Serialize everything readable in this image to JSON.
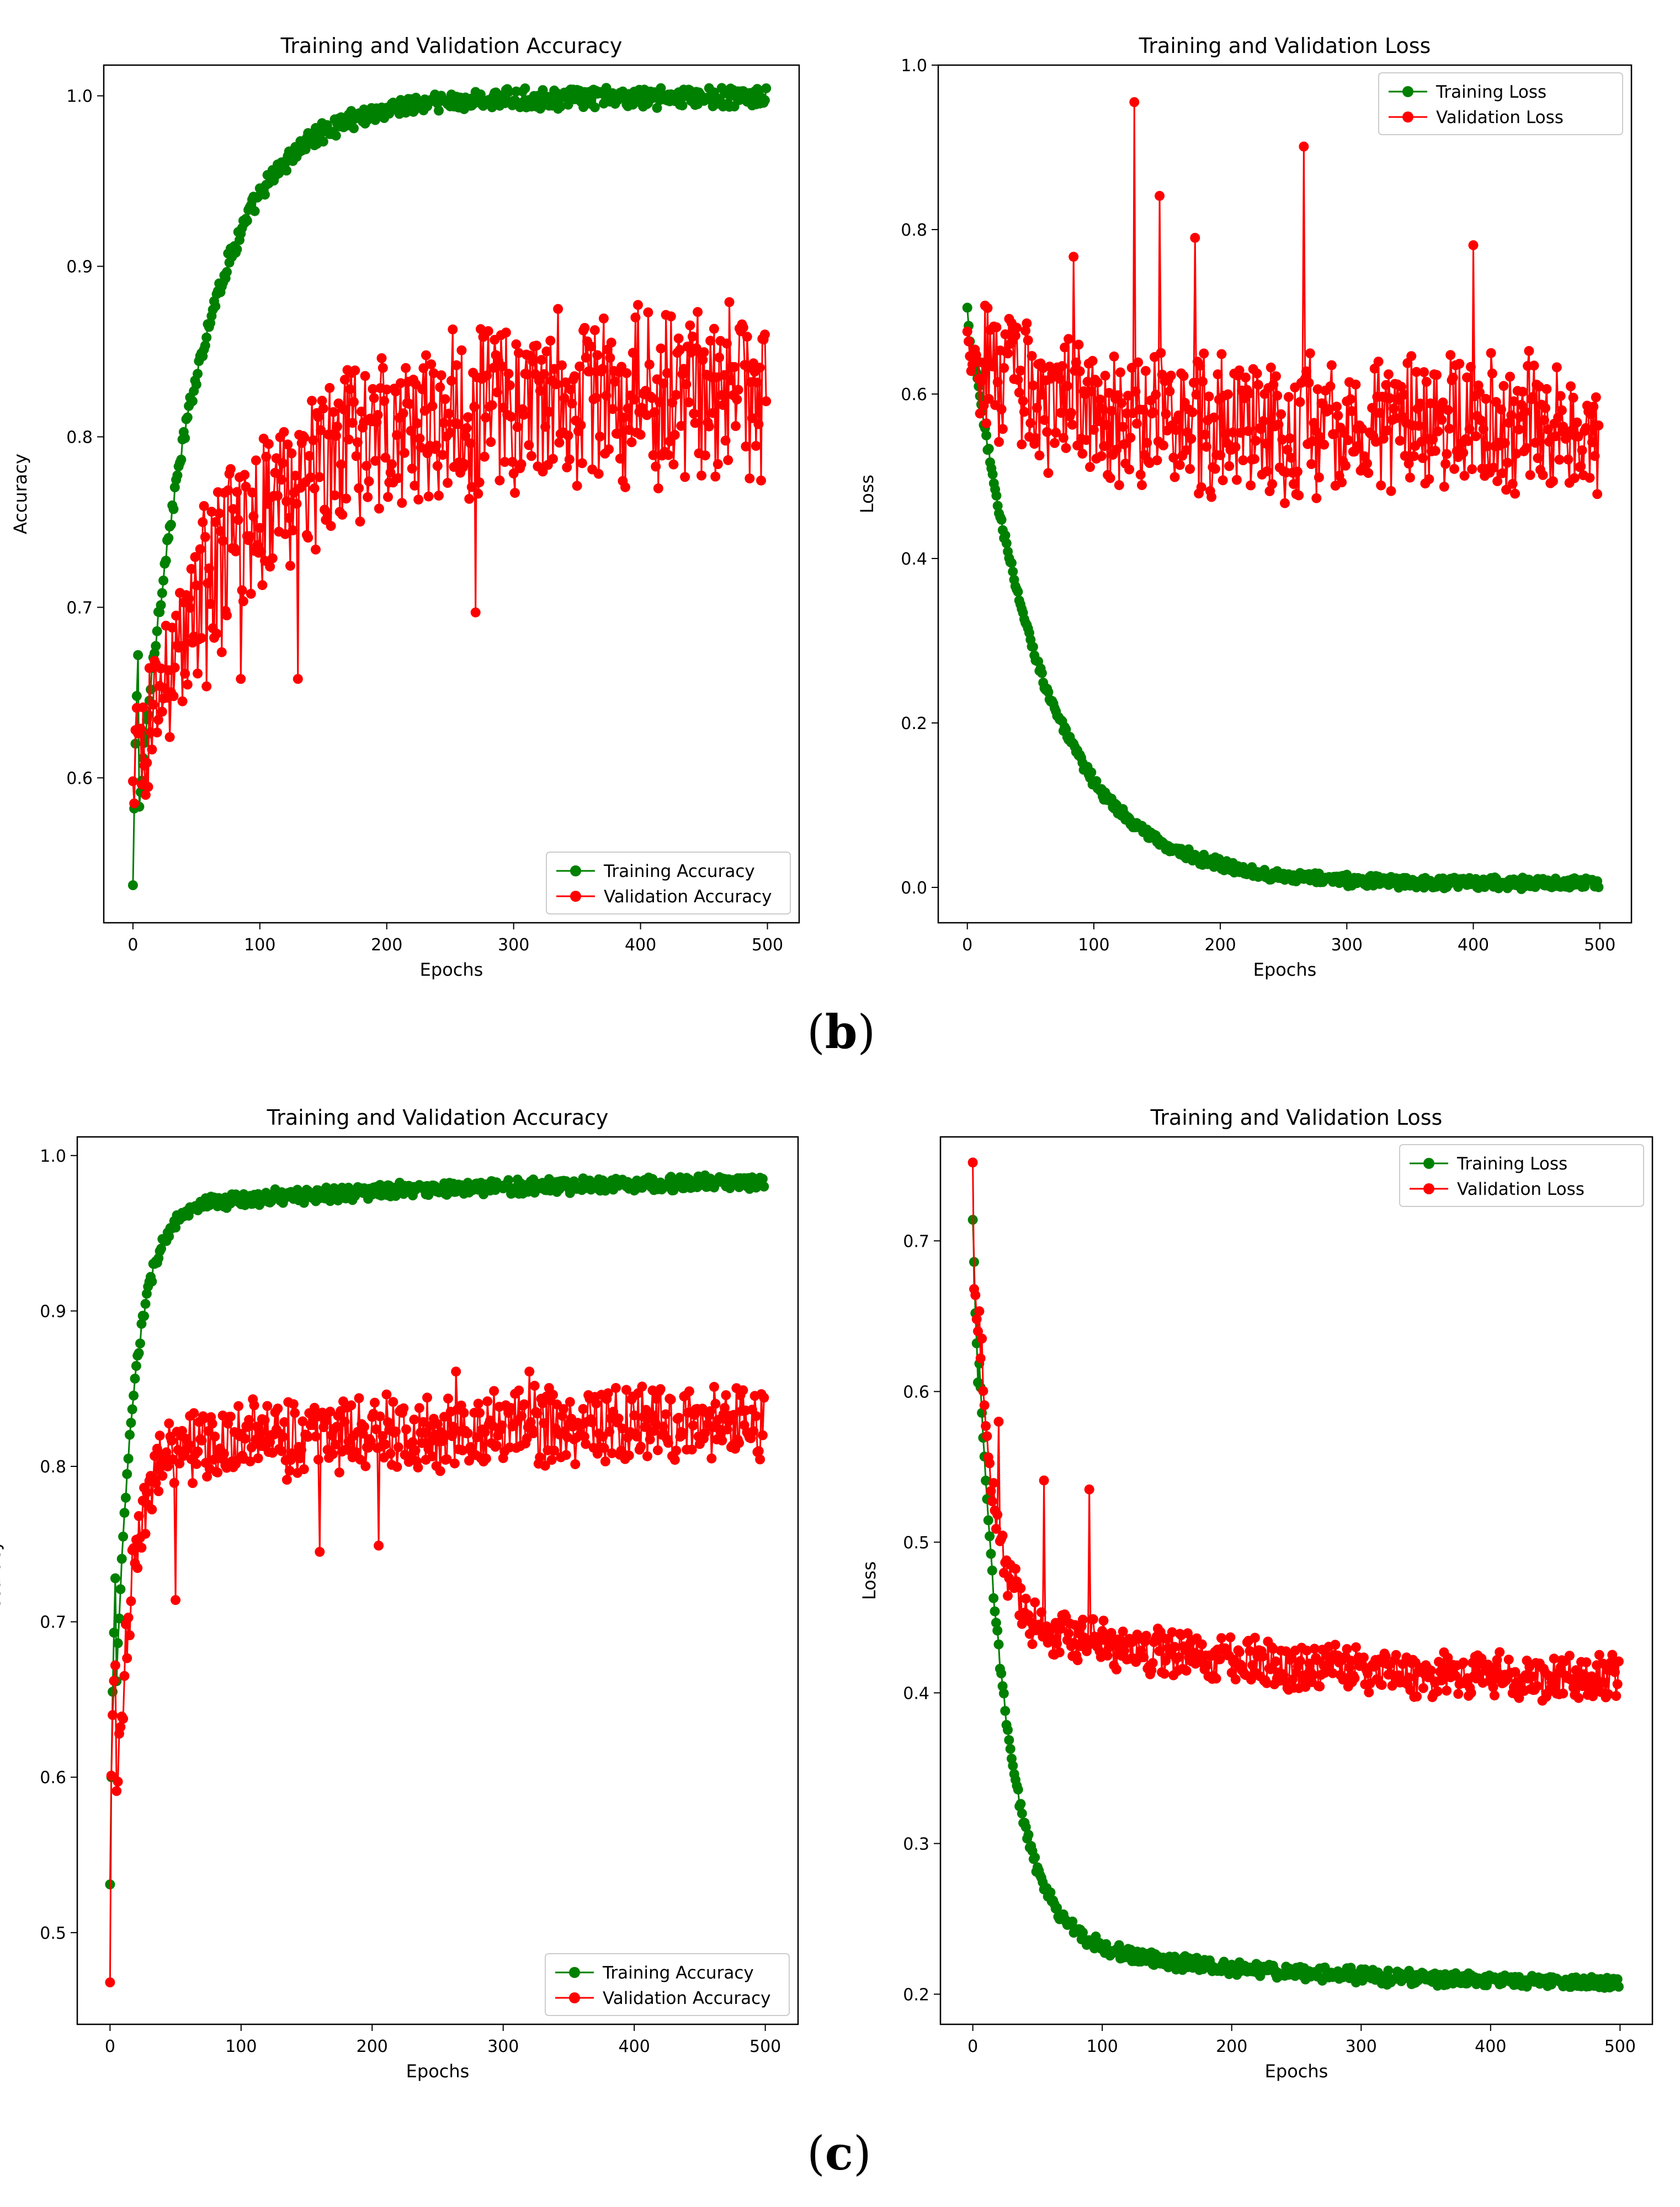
{
  "panel_labels": {
    "b": "b",
    "c": "c"
  },
  "colors": {
    "training": "#008000",
    "validation": "#ff0000"
  },
  "chart_data": [
    {
      "id": "b-acc",
      "type": "line",
      "title": "Training and Validation Accuracy",
      "xlabel": "Epochs",
      "ylabel": "Accuracy",
      "xlim": [
        -23,
        525
      ],
      "ylim": [
        0.515,
        1.018
      ],
      "xticks": [
        0,
        100,
        200,
        300,
        400,
        500
      ],
      "yticks": [
        0.6,
        0.7,
        0.8,
        0.9,
        1.0
      ],
      "legend_position": "lower-right",
      "series": [
        {
          "name": "Training Accuracy",
          "color": "#008000",
          "kind": "exp",
          "start": 0.537,
          "end": 0.999,
          "tau": 48,
          "noise": 0.005,
          "first": [
            0.537,
            0.582,
            0.62,
            0.648,
            0.672
          ]
        },
        {
          "name": "Validation Accuracy",
          "color": "#ff0000",
          "kind": "exp",
          "start": 0.598,
          "end": 0.825,
          "tau": 85,
          "noise": 0.045,
          "first": [
            0.598,
            0.585,
            0.628,
            0.641,
            0.626
          ],
          "outliers": [
            [
              270,
              0.697
            ],
            [
              130,
              0.658
            ],
            [
              85,
              0.658
            ],
            [
              470,
              0.879
            ],
            [
              335,
              0.875
            ]
          ]
        }
      ]
    },
    {
      "id": "b-loss",
      "type": "line",
      "title": "Training and Validation Loss",
      "xlabel": "Epochs",
      "ylabel": "Loss",
      "xlim": [
        -23,
        525
      ],
      "ylim": [
        -0.043,
        1.0
      ],
      "xticks": [
        0,
        100,
        200,
        300,
        400,
        500
      ],
      "yticks": [
        0.0,
        0.2,
        0.4,
        0.6,
        0.8,
        1.0
      ],
      "legend_position": "upper-right",
      "series": [
        {
          "name": "Training Loss",
          "color": "#008000",
          "kind": "exp",
          "start": 0.705,
          "end": 0.005,
          "tau": 58,
          "noise": 0.006,
          "first": [
            0.705,
            0.683,
            0.664,
            0.646,
            0.628
          ]
        },
        {
          "name": "Validation Loss",
          "color": "#ff0000",
          "kind": "exp",
          "start": 0.66,
          "end": 0.56,
          "tau": 60,
          "noise": 0.075,
          "first": [
            0.676,
            0.664,
            0.646,
            0.628,
            0.636
          ],
          "outliers": [
            [
              132,
              0.955
            ],
            [
              266,
              0.901
            ],
            [
              152,
              0.841
            ],
            [
              400,
              0.781
            ],
            [
              180,
              0.79
            ],
            [
              84,
              0.767
            ]
          ]
        }
      ]
    },
    {
      "id": "c-acc",
      "type": "line",
      "title": "Training and Validation Accuracy",
      "xlabel": "Epochs",
      "ylabel": "Accuracy",
      "xlim": [
        -25,
        525
      ],
      "ylim": [
        0.441,
        1.012
      ],
      "xticks": [
        0,
        100,
        200,
        300,
        400,
        500
      ],
      "yticks": [
        0.5,
        0.6,
        0.7,
        0.8,
        0.9,
        1.0
      ],
      "legend_position": "lower-right",
      "series": [
        {
          "name": "Training Accuracy",
          "color": "#008000",
          "kind": "exp2",
          "start": 0.531,
          "end": 0.985,
          "tau": 14,
          "tau2": 220,
          "w2": 0.045,
          "noise": 0.004,
          "first": [
            0.531,
            0.6,
            0.655,
            0.693,
            0.728
          ]
        },
        {
          "name": "Validation Accuracy",
          "color": "#ff0000",
          "kind": "exp2",
          "start": 0.468,
          "end": 0.83,
          "tau": 12,
          "tau2": 200,
          "w2": 0.06,
          "noise": 0.022,
          "first": [
            0.468,
            0.601,
            0.64,
            0.662,
            0.672
          ],
          "outliers": [
            [
              264,
              0.861
            ],
            [
              320,
              0.861
            ],
            [
              160,
              0.745
            ],
            [
              205,
              0.749
            ],
            [
              50,
              0.714
            ]
          ]
        }
      ]
    },
    {
      "id": "c-loss",
      "type": "line",
      "title": "Training and Validation Loss",
      "xlabel": "Epochs",
      "ylabel": "Loss",
      "xlim": [
        -25,
        525
      ],
      "ylim": [
        0.18,
        0.769
      ],
      "xticks": [
        0,
        100,
        200,
        300,
        400,
        500
      ],
      "yticks": [
        0.2,
        0.3,
        0.4,
        0.5,
        0.6,
        0.7
      ],
      "legend_position": "upper-right",
      "series": [
        {
          "name": "Training Loss",
          "color": "#008000",
          "kind": "exp2",
          "start": 0.714,
          "end": 0.205,
          "tau": 22,
          "tau2": 180,
          "w2": 0.075,
          "noise": 0.004,
          "first": [
            0.714,
            0.686,
            0.652,
            0.632,
            0.606
          ]
        },
        {
          "name": "Validation Loss",
          "color": "#ff0000",
          "kind": "exp2",
          "start": 0.752,
          "end": 0.405,
          "tau": 13,
          "tau2": 220,
          "w2": 0.12,
          "noise": 0.014,
          "first": [
            0.752,
            0.668,
            0.664,
            0.648,
            0.64
          ],
          "outliers": [
            [
              90,
              0.535
            ],
            [
              55,
              0.541
            ],
            [
              20,
              0.58
            ]
          ]
        }
      ]
    }
  ]
}
